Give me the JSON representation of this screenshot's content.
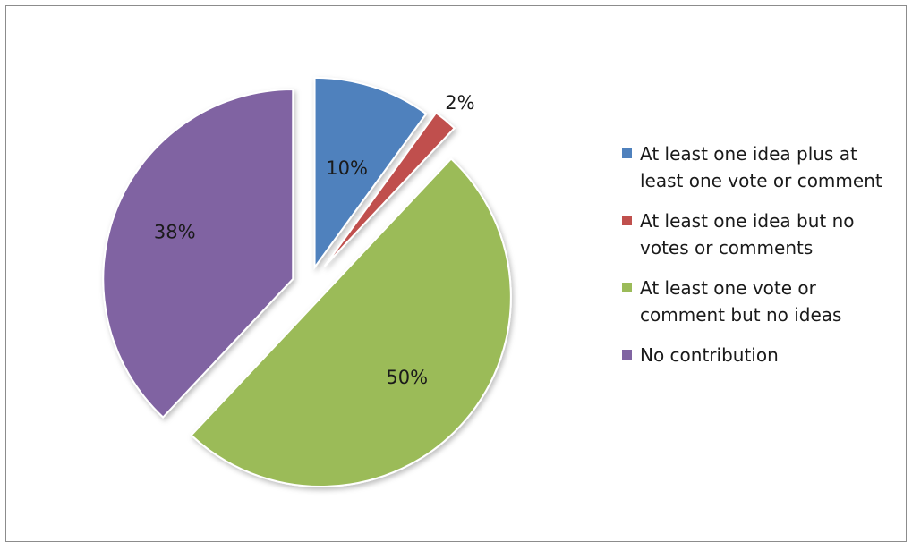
{
  "chart_data": {
    "type": "pie",
    "title": "",
    "categories": [
      "At least one idea plus at least one vote or comment",
      "At least one idea but no votes or comments",
      "At least one vote or comment but no ideas",
      "No contribution"
    ],
    "values": [
      10,
      2,
      50,
      38
    ],
    "data_labels": [
      "10%",
      "2%",
      "50%",
      "38%"
    ],
    "colors": [
      "#4F81BD",
      "#C0504D",
      "#9BBB59",
      "#8064A2"
    ],
    "exploded": true,
    "legend_position": "right"
  },
  "legend": {
    "items": [
      {
        "label_line1": "At least one idea plus at",
        "label_line2": "least one vote or comment",
        "color": "#4F81BD"
      },
      {
        "label_line1": "At least one idea but no",
        "label_line2": "votes or comments",
        "color": "#C0504D"
      },
      {
        "label_line1": "At least one vote or",
        "label_line2": "comment but no ideas",
        "color": "#9BBB59"
      },
      {
        "label_line1": "No contribution",
        "label_line2": "",
        "color": "#8064A2"
      }
    ]
  }
}
